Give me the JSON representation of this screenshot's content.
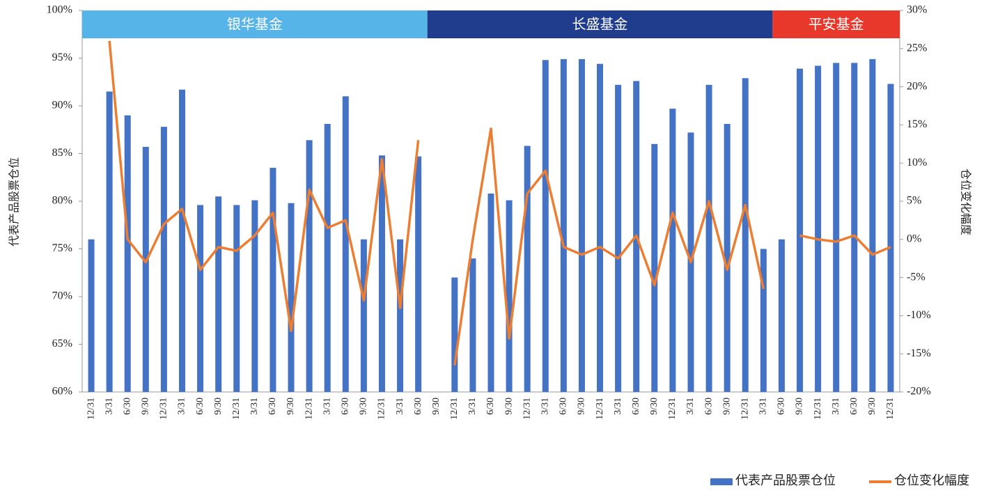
{
  "chart_data": {
    "type": "bar-line",
    "y_axis_title": "代表产品股票仓位",
    "y2_axis_title": "仓位变化幅度",
    "categories": [
      "12/31",
      "3/31",
      "6/30",
      "9/30",
      "12/31",
      "3/31",
      "6/30",
      "9/30",
      "12/31",
      "3/31",
      "6/30",
      "9/30",
      "12/31",
      "3/31",
      "6/30",
      "9/30",
      "12/31",
      "3/31",
      "6/30",
      "9/30",
      "12/31",
      "3/31",
      "6/30",
      "9/30",
      "12/31",
      "3/31",
      "6/30",
      "9/30",
      "12/31",
      "3/31",
      "6/30",
      "9/30",
      "12/31",
      "3/31",
      "6/30",
      "9/30",
      "12/31",
      "3/31",
      "6/30",
      "9/30",
      "12/31",
      "3/31",
      "6/30",
      "9/30",
      "12/31"
    ],
    "groups": [
      {
        "name": "银华基金",
        "first": 0,
        "last": 18,
        "color": "#56b4e9"
      },
      {
        "name": "长盛基金",
        "first": 19,
        "last": 37,
        "color": "#1f3d8c"
      },
      {
        "name": "平安基金",
        "first": 38,
        "last": 44,
        "color": "#e8372b"
      }
    ],
    "series": [
      {
        "name": "代表产品股票仓位",
        "color": "#4472c4",
        "kind": "bar",
        "values": [
          76,
          91.5,
          89,
          85.7,
          87.8,
          91.7,
          79.6,
          80.5,
          79.6,
          80.1,
          83.5,
          79.8,
          86.4,
          88.1,
          91,
          76,
          84.8,
          76,
          84.7,
          null,
          72,
          74,
          80.8,
          80.1,
          85.8,
          94.8,
          94.9,
          94.9,
          94.4,
          92.2,
          92.6,
          86,
          89.7,
          87.2,
          92.2,
          88.1,
          92.9,
          75,
          76,
          93.9,
          94.2,
          94.5,
          94.5,
          94.9,
          92.3
        ]
      },
      {
        "name": "仓位变化幅度",
        "color": "#ed7d31",
        "kind": "line",
        "axis": "y2",
        "values": [
          null,
          26,
          0,
          -3,
          2,
          4,
          -4,
          -1,
          -1.5,
          0.5,
          3.5,
          -12,
          6.5,
          1.5,
          2.5,
          -8,
          10.5,
          -9,
          13,
          null,
          -16.5,
          0,
          14.5,
          -13,
          6,
          9,
          -1,
          -2,
          -1,
          -2.5,
          0.5,
          -6,
          3.5,
          -3,
          5,
          -4,
          4.5,
          -6.5,
          null,
          0.5,
          0,
          -0.3,
          0.5,
          -2,
          -1
        ]
      }
    ],
    "ylim": [
      60,
      100
    ],
    "yticks": [
      {
        "value": 60,
        "label": "60%"
      },
      {
        "value": 65,
        "label": "65%"
      },
      {
        "value": 70,
        "label": "70%"
      },
      {
        "value": 75,
        "label": "75%"
      },
      {
        "value": 80,
        "label": "80%"
      },
      {
        "value": 85,
        "label": "85%"
      },
      {
        "value": 90,
        "label": "90%"
      },
      {
        "value": 95,
        "label": "95%"
      },
      {
        "value": 100,
        "label": "100%"
      }
    ],
    "y2lim": [
      -20,
      30
    ],
    "y2ticks": [
      {
        "value": -20,
        "label": "-20%"
      },
      {
        "value": -15,
        "label": "-15%"
      },
      {
        "value": -10,
        "label": "-10%"
      },
      {
        "value": -5,
        "label": "-5%"
      },
      {
        "value": 0,
        "label": "0%"
      },
      {
        "value": 5,
        "label": "5%"
      },
      {
        "value": 10,
        "label": "10%"
      },
      {
        "value": 15,
        "label": "15%"
      },
      {
        "value": 20,
        "label": "20%"
      },
      {
        "value": 25,
        "label": "25%"
      },
      {
        "value": 30,
        "label": "30%"
      }
    ],
    "legend": "bottom-right"
  }
}
